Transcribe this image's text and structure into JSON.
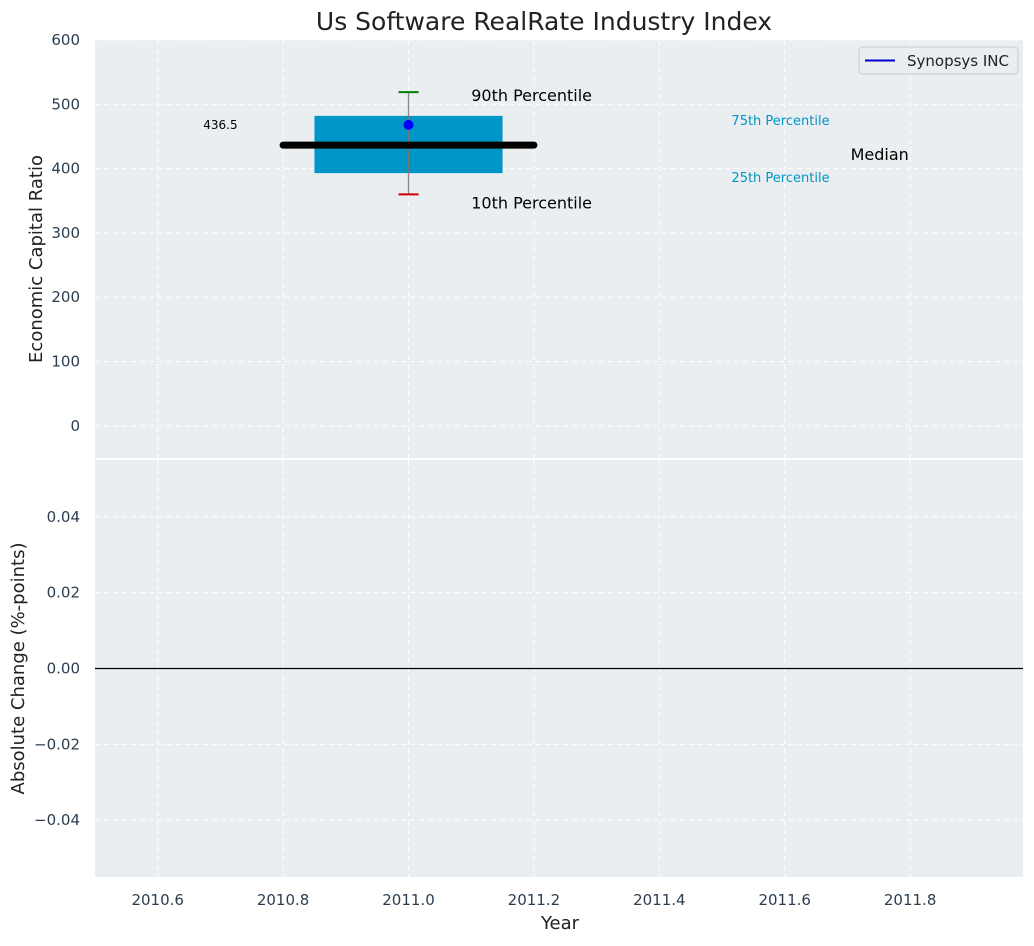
{
  "chart_data": [
    {
      "type": "box",
      "title": "Us Software RealRate Industry Index",
      "ylabel": "Economic Capital Ratio",
      "xlim": [
        2010.5,
        2011.98
      ],
      "ylim": [
        -50,
        600
      ],
      "yticks": [
        0,
        100,
        200,
        300,
        400,
        500,
        600
      ],
      "grid": true,
      "legend": {
        "position": "top-right",
        "entries": [
          {
            "label": "Synopsys INC",
            "color": "#0000cc"
          }
        ]
      },
      "box": {
        "x": 2011.0,
        "box_width": 0.3,
        "median_width": 0.4,
        "p10": 360,
        "p25": 393,
        "median": 436.5,
        "p75": 482,
        "p90": 519,
        "company_value": 468,
        "median_label": "436.5",
        "box_color": "#0096c8",
        "median_color": "#000000",
        "p90_color": "#008000",
        "p10_color": "#cc0000",
        "point_color": "#0000ff"
      },
      "annotations": {
        "p90": "90th Percentile",
        "p10": "10th Percentile",
        "p75": "75th Percentile",
        "p25": "25th Percentile",
        "median": "Median"
      }
    },
    {
      "type": "line",
      "xlabel": "Year",
      "ylabel": "Absolute Change (%-points)",
      "xlim": [
        2010.5,
        2011.98
      ],
      "ylim": [
        -0.055,
        0.055
      ],
      "xticks": [
        2010.6,
        2010.8,
        2011.0,
        2011.2,
        2011.4,
        2011.6,
        2011.8
      ],
      "xtick_labels": [
        "2010.6",
        "2010.8",
        "2011.0",
        "2011.2",
        "2011.4",
        "2011.6",
        "2011.8"
      ],
      "yticks": [
        -0.04,
        -0.02,
        0.0,
        0.02,
        0.04
      ],
      "ytick_labels": [
        "−0.04",
        "−0.02",
        "0.00",
        "0.02",
        "0.04"
      ],
      "zero_line": 0,
      "grid": true
    }
  ],
  "colors": {
    "panel_bg": "#eaeef0",
    "grid": "#ffffff",
    "tick_text": "#2b3e50",
    "text": "#222222",
    "annotation_blue": "#0096c8"
  }
}
